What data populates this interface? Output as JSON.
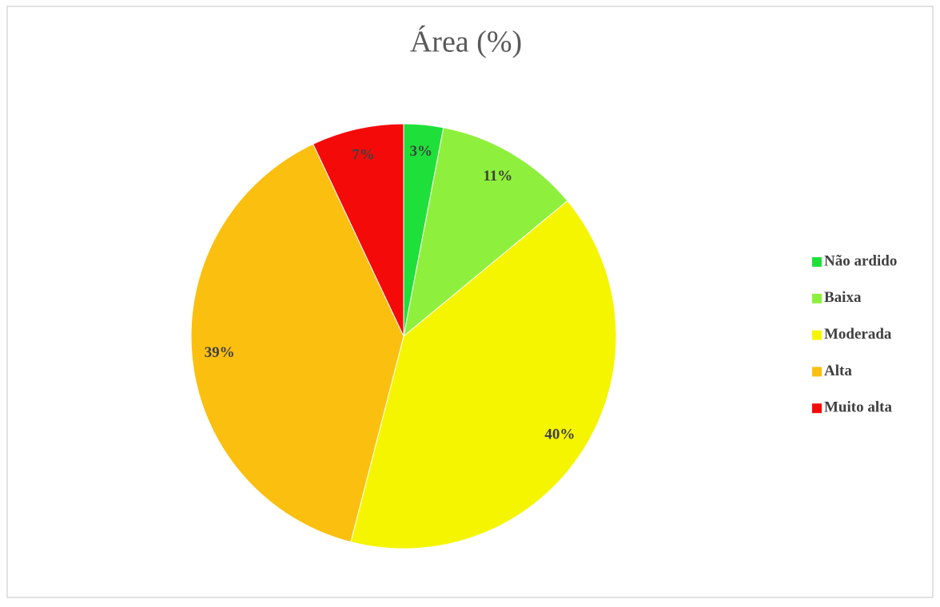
{
  "chart_data": {
    "type": "pie",
    "title": "Área (%)",
    "categories": [
      "Não ardido",
      "Baixa",
      "Moderada",
      "Alta",
      "Muito alta"
    ],
    "values": [
      3,
      11,
      40,
      39,
      7
    ],
    "value_labels": [
      "3%",
      "11%",
      "40%",
      "39%",
      "7%"
    ],
    "colors": [
      "#1fe03a",
      "#8ef03c",
      "#f5f500",
      "#fbbf10",
      "#f50a0a"
    ],
    "legend": "right"
  }
}
